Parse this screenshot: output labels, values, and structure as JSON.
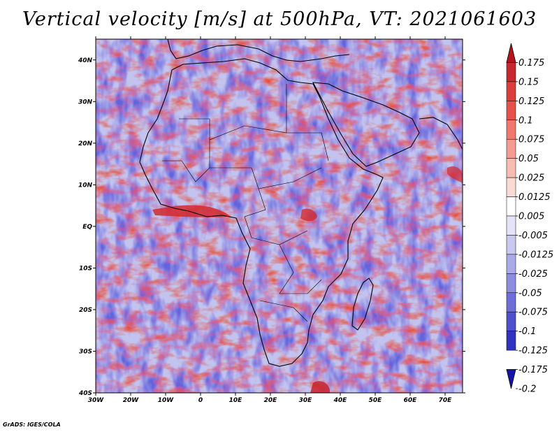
{
  "title": "Vertical velocity [m/s] at 500hPa, VT: 2021061603",
  "credit": "GrADS: IGES/COLA",
  "map": {
    "region": "Africa",
    "lon_range": [
      -30,
      75
    ],
    "lat_range": [
      -40,
      45
    ],
    "x_ticks": [
      "30W",
      "20W",
      "10W",
      "0",
      "10E",
      "20E",
      "30E",
      "40E",
      "50E",
      "60E",
      "70E"
    ],
    "y_ticks": [
      "40N",
      "30N",
      "20N",
      "10N",
      "EQ",
      "10S",
      "20S",
      "30S",
      "40S"
    ],
    "field_colors": {
      "ascent": "#e8503a",
      "descent": "#6464dc",
      "background": "#f4f4fb"
    }
  },
  "colorbar": {
    "labels": [
      "0.175",
      "0.15",
      "0.125",
      "0.1",
      "0.075",
      "0.05",
      "0.025",
      "0.0125",
      "0.005",
      "-0.005",
      "-0.0125",
      "-0.025",
      "-0.05",
      "-0.075",
      "-0.1",
      "-0.125",
      "-0.175",
      "-0.2"
    ],
    "colors": [
      "#b4141e",
      "#c8282d",
      "#dc3c3c",
      "#e8504b",
      "#f0786e",
      "#f59b91",
      "#f8bcb2",
      "#fbdad4",
      "#ffffff",
      "#e4e4f8",
      "#c8c8f0",
      "#aaaae8",
      "#8c8ce0",
      "#6e6ed8",
      "#5050cc",
      "#3232c0",
      "#1414a8"
    ]
  }
}
